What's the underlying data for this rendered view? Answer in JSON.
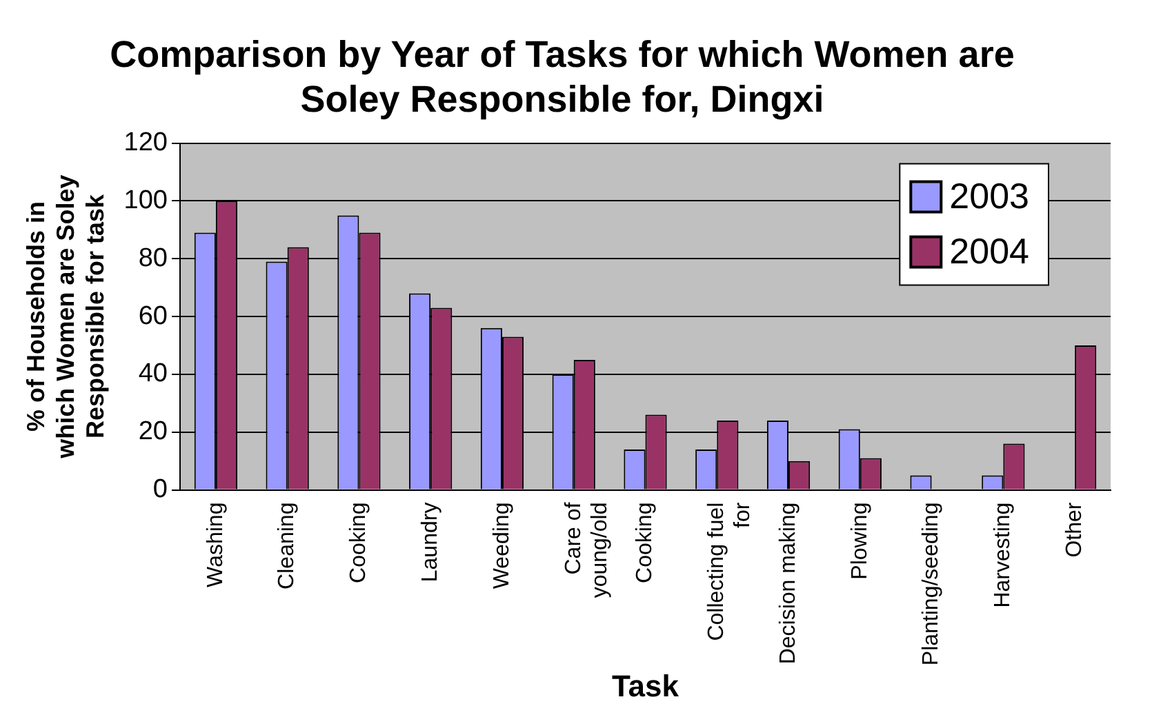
{
  "chart_data": {
    "type": "bar",
    "title": "Comparison by Year of Tasks for which Women are Soley Responsible for, Dingxi",
    "xlabel": "Task",
    "ylabel": "% of Households in which Women are Soley Responsible for task",
    "categories": [
      "Washing",
      "Cleaning",
      "Cooking",
      "Laundry",
      "Weeding",
      "Care of young/old",
      "Cooking",
      "Collecting fuel for",
      "Decision making",
      "Plowing",
      "Planting/seeding",
      "Harvesting",
      "Other"
    ],
    "series": [
      {
        "name": "2003",
        "color": "#9999ff",
        "values": [
          89,
          79,
          95,
          68,
          56,
          40,
          14,
          14,
          24,
          21,
          5,
          5,
          null
        ]
      },
      {
        "name": "2004",
        "color": "#993366",
        "values": [
          100,
          84,
          89,
          63,
          53,
          45,
          26,
          24,
          10,
          11,
          null,
          16,
          50
        ]
      }
    ],
    "ylim": [
      0,
      120
    ],
    "yticks": [
      0,
      20,
      40,
      60,
      80,
      100,
      120
    ],
    "grid": "y",
    "legend": "top right"
  }
}
